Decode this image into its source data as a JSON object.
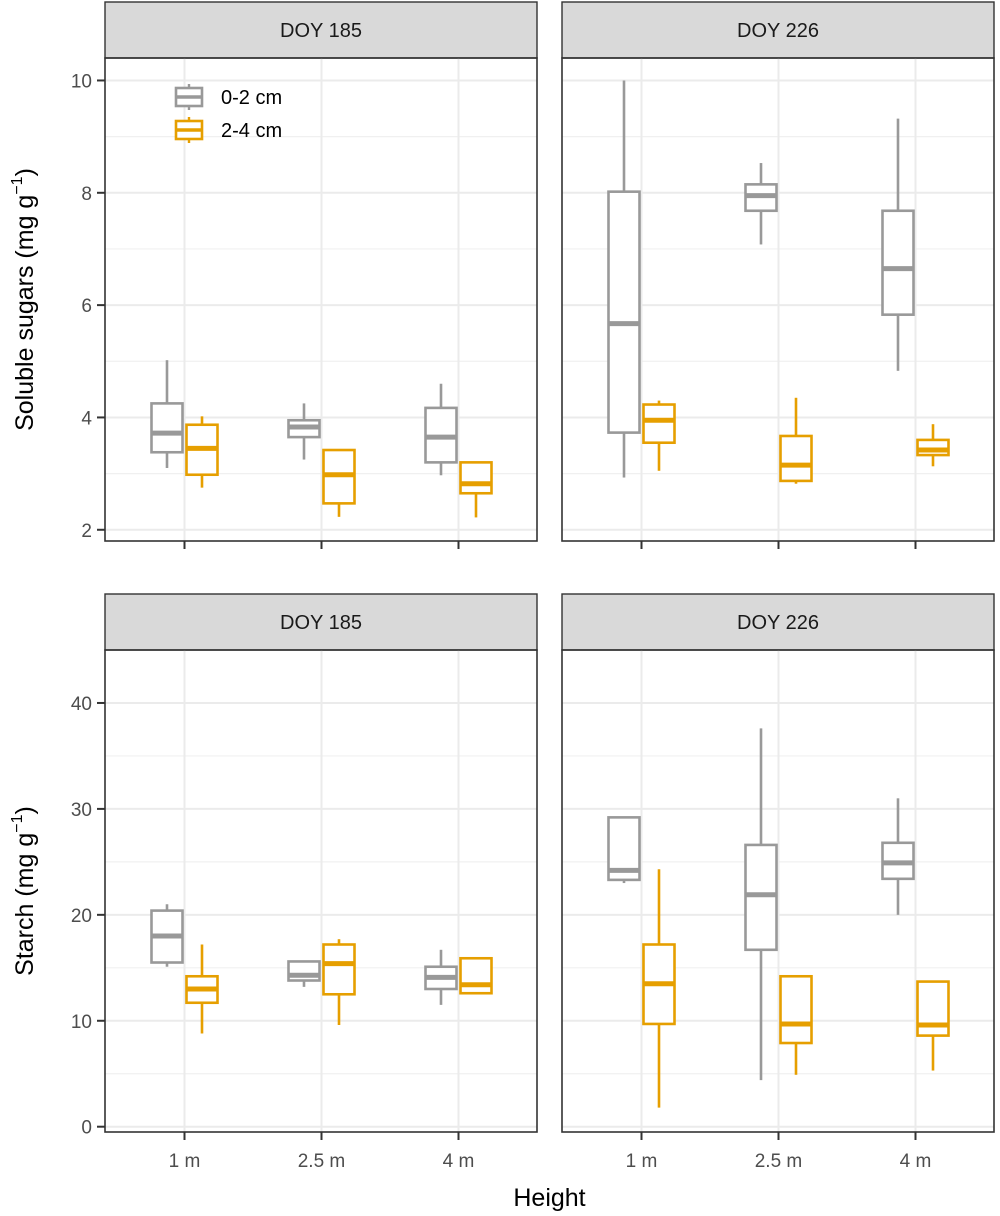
{
  "colors": {
    "0-2 cm": "#999999",
    "2-4 cm": "#E69F00"
  },
  "legend": {
    "placement": "top-left (inside first panel)",
    "entries": [
      "0-2 cm",
      "2-4 cm"
    ]
  },
  "x_axis": {
    "title": "Height",
    "categories": [
      "1 m",
      "2.5 m",
      "4 m"
    ]
  },
  "chart_data": [
    {
      "type": "box",
      "panel": "DOY 185",
      "ylabel_main": "Soluble sugars (mg g",
      "ylabel_sup": "−1",
      "ylabel_tail": ")",
      "ylim": [
        1.8,
        10.4
      ],
      "yticks": [
        2,
        4,
        6,
        8,
        10
      ],
      "grid": true,
      "categories": [
        "1 m",
        "2.5 m",
        "4 m"
      ],
      "series": [
        {
          "name": "0-2 cm",
          "boxes": [
            {
              "min": 3.1,
              "q1": 3.38,
              "median": 3.72,
              "q3": 4.25,
              "max": 5.02
            },
            {
              "min": 3.25,
              "q1": 3.65,
              "median": 3.83,
              "q3": 3.95,
              "max": 4.25
            },
            {
              "min": 2.97,
              "q1": 3.2,
              "median": 3.65,
              "q3": 4.17,
              "max": 4.6
            }
          ]
        },
        {
          "name": "2-4 cm",
          "boxes": [
            {
              "min": 2.75,
              "q1": 2.98,
              "median": 3.45,
              "q3": 3.87,
              "max": 4.02
            },
            {
              "min": 2.23,
              "q1": 2.47,
              "median": 2.98,
              "q3": 3.42,
              "max": 3.42
            },
            {
              "min": 2.22,
              "q1": 2.65,
              "median": 2.82,
              "q3": 3.2,
              "max": 3.2
            }
          ]
        }
      ]
    },
    {
      "type": "box",
      "panel": "DOY 226",
      "ylim": [
        1.8,
        10.4
      ],
      "yticks": [
        2,
        4,
        6,
        8,
        10
      ],
      "grid": true,
      "categories": [
        "1 m",
        "2.5 m",
        "4 m"
      ],
      "series": [
        {
          "name": "0-2 cm",
          "boxes": [
            {
              "min": 2.93,
              "q1": 3.73,
              "median": 5.67,
              "q3": 8.02,
              "max": 10.0
            },
            {
              "min": 7.08,
              "q1": 7.68,
              "median": 7.95,
              "q3": 8.15,
              "max": 8.53
            },
            {
              "min": 4.83,
              "q1": 5.83,
              "median": 6.65,
              "q3": 7.68,
              "max": 9.32
            }
          ]
        },
        {
          "name": "2-4 cm",
          "boxes": [
            {
              "min": 3.05,
              "q1": 3.55,
              "median": 3.95,
              "q3": 4.23,
              "max": 4.3
            },
            {
              "min": 2.82,
              "q1": 2.87,
              "median": 3.15,
              "q3": 3.67,
              "max": 4.35
            },
            {
              "min": 3.13,
              "q1": 3.33,
              "median": 3.42,
              "q3": 3.6,
              "max": 3.88
            }
          ]
        }
      ]
    },
    {
      "type": "box",
      "panel": "DOY 185",
      "ylabel_main": "Starch (mg g",
      "ylabel_sup": "−1",
      "ylabel_tail": ")",
      "ylim": [
        -0.5,
        45
      ],
      "yticks": [
        0,
        10,
        20,
        30,
        40
      ],
      "grid": true,
      "categories": [
        "1 m",
        "2.5 m",
        "4 m"
      ],
      "series": [
        {
          "name": "0-2 cm",
          "boxes": [
            {
              "min": 15.1,
              "q1": 15.5,
              "median": 18.0,
              "q3": 20.4,
              "max": 21.0
            },
            {
              "min": 13.2,
              "q1": 13.8,
              "median": 14.3,
              "q3": 15.6,
              "max": 15.6
            },
            {
              "min": 11.5,
              "q1": 13.0,
              "median": 14.1,
              "q3": 15.1,
              "max": 16.7
            }
          ]
        },
        {
          "name": "2-4 cm",
          "boxes": [
            {
              "min": 8.8,
              "q1": 11.7,
              "median": 13.0,
              "q3": 14.2,
              "max": 17.2
            },
            {
              "min": 9.6,
              "q1": 12.5,
              "median": 15.4,
              "q3": 17.2,
              "max": 17.7
            },
            {
              "min": 12.5,
              "q1": 12.6,
              "median": 13.4,
              "q3": 15.9,
              "max": 15.9
            }
          ]
        }
      ]
    },
    {
      "type": "box",
      "panel": "DOY 226",
      "ylim": [
        -0.5,
        45
      ],
      "yticks": [
        0,
        10,
        20,
        30,
        40
      ],
      "grid": true,
      "categories": [
        "1 m",
        "2.5 m",
        "4 m"
      ],
      "series": [
        {
          "name": "0-2 cm",
          "boxes": [
            {
              "min": 23.0,
              "q1": 23.3,
              "median": 24.2,
              "q3": 29.2,
              "max": 29.2
            },
            {
              "min": 4.4,
              "q1": 16.7,
              "median": 21.9,
              "q3": 26.6,
              "max": 37.6
            },
            {
              "min": 20.0,
              "q1": 23.4,
              "median": 24.9,
              "q3": 26.8,
              "max": 31.0
            }
          ]
        },
        {
          "name": "2-4 cm",
          "boxes": [
            {
              "min": 1.8,
              "q1": 9.7,
              "median": 13.5,
              "q3": 17.2,
              "max": 24.3
            },
            {
              "min": 4.9,
              "q1": 7.9,
              "median": 9.7,
              "q3": 14.2,
              "max": 14.2
            },
            {
              "min": 5.3,
              "q1": 8.6,
              "median": 9.6,
              "q3": 13.7,
              "max": 13.7
            }
          ]
        }
      ]
    }
  ]
}
